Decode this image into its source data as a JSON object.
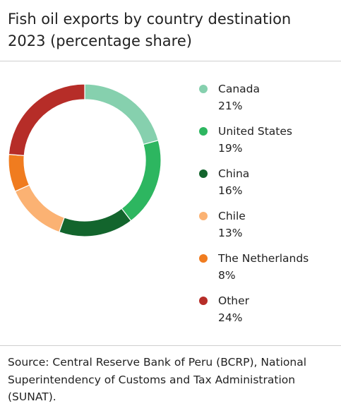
{
  "title": "Fish oil exports by country destination 2023 (percentage share)",
  "source": "Source: Central Reserve Bank of Peru (BCRP), National Superintendency of Customs and Tax Administration (SUNAT).",
  "chart_data": {
    "type": "pie",
    "title": "Fish oil exports by country destination 2023 (percentage share)",
    "donut": true,
    "unit": "%",
    "legend_position": "right",
    "slices": [
      {
        "label": "Canada",
        "value": 21,
        "value_label": "21%",
        "color": "#86d0ae"
      },
      {
        "label": "United States",
        "value": 19,
        "value_label": "19%",
        "color": "#2db660"
      },
      {
        "label": "China",
        "value": 16,
        "value_label": "16%",
        "color": "#13652d"
      },
      {
        "label": "Chile",
        "value": 13,
        "value_label": "13%",
        "color": "#fbb273"
      },
      {
        "label": "The Netherlands",
        "value": 8,
        "value_label": "8%",
        "color": "#f07c1f"
      },
      {
        "label": "Other",
        "value": 24,
        "value_label": "24%",
        "color": "#b62d28"
      }
    ]
  }
}
